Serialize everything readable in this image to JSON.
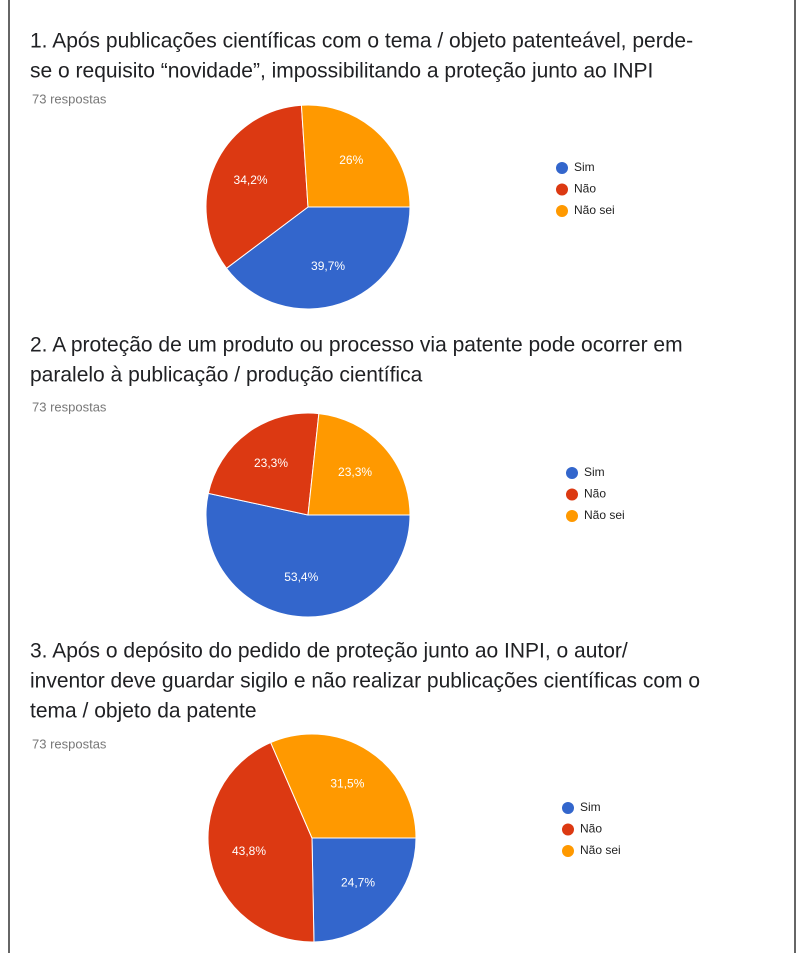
{
  "chart_data": [
    {
      "type": "pie",
      "title": [
        "1. Após publicações científicas com o tema / objeto patenteável, perde-",
        "se o requisito “novidade”, impossibilitando a proteção junto ao INPI"
      ],
      "subtitle": "73 respostas",
      "categories": [
        "Sim",
        "Não",
        "Não sei"
      ],
      "values": [
        39.7,
        34.2,
        26
      ],
      "value_labels": [
        "39,7%",
        "34,2%",
        "26%"
      ],
      "colors": [
        "#3366cc",
        "#dc3912",
        "#ff9900"
      ],
      "legend": "right"
    },
    {
      "type": "pie",
      "title": [
        "2. A proteção de um produto ou processo via patente pode ocorrer em",
        "paralelo à publicação / produção científica"
      ],
      "subtitle": "73 respostas",
      "categories": [
        "Sim",
        "Não",
        "Não sei"
      ],
      "values": [
        53.4,
        23.3,
        23.3
      ],
      "value_labels": [
        "53,4%",
        "23,3%",
        "23,3%"
      ],
      "colors": [
        "#3366cc",
        "#dc3912",
        "#ff9900"
      ],
      "legend": "right"
    },
    {
      "type": "pie",
      "title": [
        "3. Após o depósito do pedido de proteção junto ao INPI, o autor/",
        "inventor deve guardar sigilo e não realizar publicações científicas com o",
        "tema / objeto da patente"
      ],
      "subtitle": "73 respostas",
      "categories": [
        "Sim",
        "Não",
        "Não sei"
      ],
      "values": [
        24.7,
        43.8,
        31.5
      ],
      "value_labels": [
        "24,7%",
        "43,8%",
        "31,5%"
      ],
      "colors": [
        "#3366cc",
        "#dc3912",
        "#ff9900"
      ],
      "legend": "right"
    }
  ]
}
